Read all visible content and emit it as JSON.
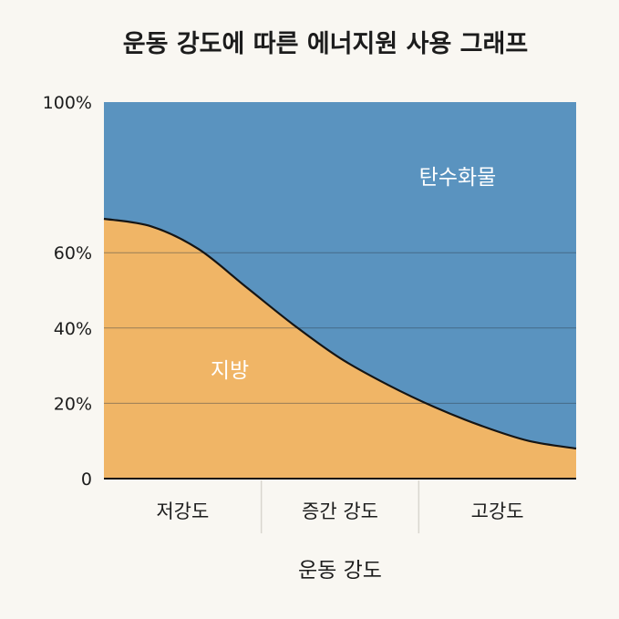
{
  "chart_data": {
    "type": "area",
    "title": "운동 강도에 따른 에너지원 사용 그래프",
    "xlabel": "운동 강도",
    "ylabel": "",
    "categories": [
      "저강도",
      "증간 강도",
      "고강도"
    ],
    "x": [
      0,
      10,
      20,
      30,
      40,
      50,
      60,
      70,
      80,
      90,
      100
    ],
    "ylim": [
      0,
      100
    ],
    "yticks": [
      0,
      20,
      40,
      60,
      100
    ],
    "ytick_labels": [
      "0",
      "20%",
      "40%",
      "60%",
      "100%"
    ],
    "grid": true,
    "series": [
      {
        "name": "지방",
        "color": "#f0b566",
        "values": [
          69,
          67,
          61,
          51,
          41,
          32,
          25,
          19,
          14,
          10,
          8
        ]
      },
      {
        "name": "탄수화물",
        "color": "#5a93bf",
        "values": [
          31,
          33,
          39,
          49,
          59,
          68,
          75,
          81,
          86,
          90,
          92
        ]
      }
    ]
  }
}
